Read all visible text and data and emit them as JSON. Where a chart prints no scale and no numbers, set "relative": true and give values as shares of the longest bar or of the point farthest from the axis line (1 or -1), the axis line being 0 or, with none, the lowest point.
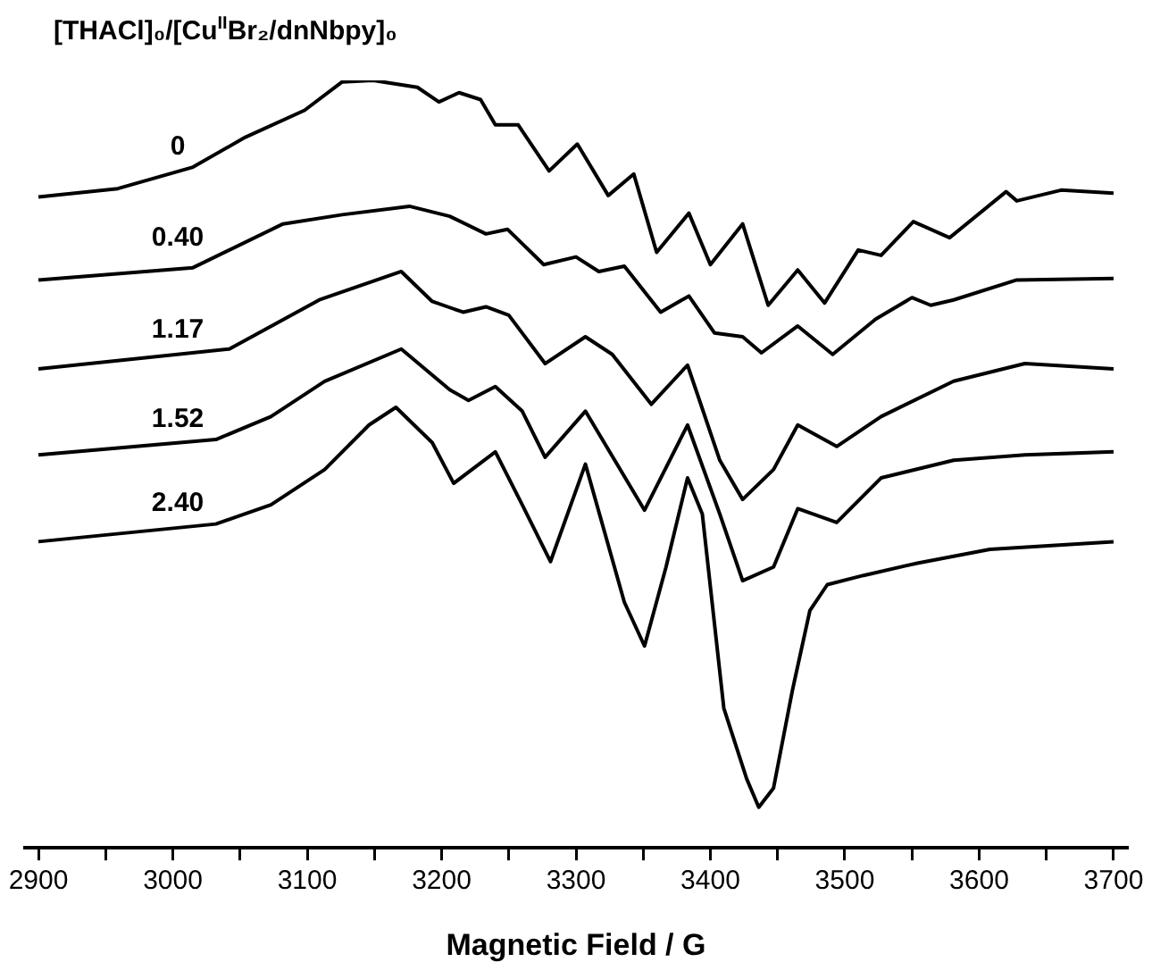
{
  "chart_data": {
    "type": "line",
    "relative": true,
    "legend_title": "[THACl]₀/[Cu$^{II}$Br₂/dnNbpy]₀",
    "xlabel": "Magnetic Field / G",
    "xlim": [
      2890,
      3710
    ],
    "xticks": [
      2900,
      {
        "value": 2950,
        "label": null
      },
      3000,
      {
        "value": 3050,
        "label": null
      },
      3100,
      {
        "value": 3150,
        "label": null
      },
      3200,
      {
        "value": 3250,
        "label": null
      },
      3300,
      {
        "value": 3350,
        "label": null
      },
      3400,
      {
        "value": 3450,
        "label": null
      },
      3500,
      {
        "value": 3550,
        "label": null
      },
      3600,
      {
        "value": 3650,
        "label": null
      },
      3700
    ],
    "grid": false,
    "legend": false,
    "series": [
      {
        "name": "0",
        "color": "#000000",
        "x": [
          2900,
          2959,
          3015,
          3054,
          3098,
          3126,
          3149,
          3182,
          3198,
          3213,
          3229,
          3240,
          3257,
          3280,
          3301,
          3324,
          3343,
          3360,
          3384,
          3400,
          3424,
          3443,
          3465,
          3485,
          3510,
          3527,
          3551,
          3578,
          3620,
          3628,
          3661,
          3700
        ],
        "values": [
          0.848,
          0.859,
          0.887,
          0.926,
          0.961,
          0.998,
          1,
          0.991,
          0.972,
          0.984,
          0.975,
          0.942,
          0.942,
          0.882,
          0.917,
          0.85,
          0.878,
          0.776,
          0.827,
          0.76,
          0.813,
          0.707,
          0.753,
          0.71,
          0.779,
          0.772,
          0.816,
          0.795,
          0.855,
          0.843,
          0.857,
          0.853
        ]
      },
      {
        "name": "0.40",
        "color": "#000000",
        "x": [
          2900,
          3015,
          3082,
          3126,
          3176,
          3206,
          3233,
          3249,
          3276,
          3300,
          3317,
          3336,
          3363,
          3384,
          3403,
          3424,
          3438,
          3465,
          3491,
          3523,
          3550,
          3564,
          3581,
          3628,
          3700
        ],
        "values": [
          0.74,
          0.756,
          0.813,
          0.825,
          0.836,
          0.823,
          0.8,
          0.806,
          0.76,
          0.77,
          0.751,
          0.758,
          0.698,
          0.719,
          0.671,
          0.666,
          0.645,
          0.68,
          0.643,
          0.689,
          0.717,
          0.707,
          0.714,
          0.74,
          0.742
        ]
      },
      {
        "name": "1.17",
        "color": "#000000",
        "x": [
          2900,
          3042,
          3109,
          3170,
          3193,
          3216,
          3233,
          3250,
          3277,
          3307,
          3327,
          3356,
          3383,
          3407,
          3424,
          3447,
          3465,
          3494,
          3527,
          3581,
          3634,
          3700
        ],
        "values": [
          0.624,
          0.65,
          0.714,
          0.751,
          0.712,
          0.698,
          0.705,
          0.694,
          0.631,
          0.666,
          0.643,
          0.578,
          0.629,
          0.505,
          0.454,
          0.493,
          0.551,
          0.523,
          0.562,
          0.608,
          0.631,
          0.624
        ]
      },
      {
        "name": "1.52",
        "color": "#000000",
        "x": [
          2900,
          3032,
          3073,
          3113,
          3170,
          3206,
          3220,
          3240,
          3260,
          3277,
          3307,
          3351,
          3383,
          3407,
          3424,
          3447,
          3465,
          3494,
          3527,
          3581,
          3634,
          3700
        ],
        "values": [
          0.512,
          0.532,
          0.562,
          0.608,
          0.65,
          0.597,
          0.583,
          0.601,
          0.569,
          0.509,
          0.569,
          0.44,
          0.551,
          0.435,
          0.348,
          0.366,
          0.442,
          0.424,
          0.482,
          0.505,
          0.512,
          0.516
        ]
      },
      {
        "name": "2.40",
        "color": "#000000",
        "x": [
          2900,
          3032,
          3073,
          3113,
          3146,
          3166,
          3193,
          3209,
          3240,
          3260,
          3281,
          3307,
          3336,
          3351,
          3367,
          3383,
          3394,
          3410,
          3427,
          3436,
          3447,
          3461,
          3474,
          3487,
          3514,
          3554,
          3608,
          3700
        ],
        "values": [
          0.399,
          0.422,
          0.447,
          0.493,
          0.551,
          0.574,
          0.528,
          0.475,
          0.516,
          0.447,
          0.373,
          0.5,
          0.32,
          0.263,
          0.366,
          0.482,
          0.435,
          0.182,
          0.09,
          0.053,
          0.078,
          0.205,
          0.309,
          0.343,
          0.355,
          0.371,
          0.389,
          0.399
        ]
      }
    ]
  }
}
